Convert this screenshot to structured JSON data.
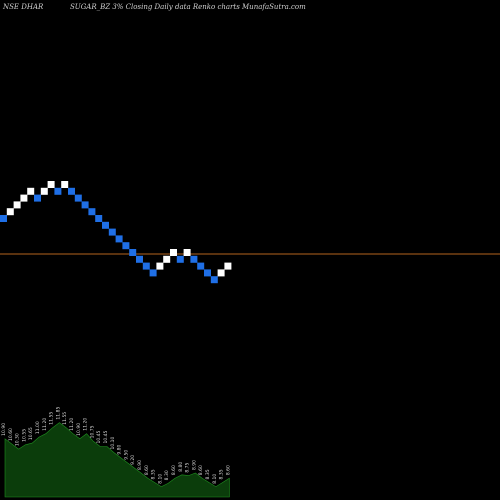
{
  "header": {
    "left": "NSE DHAR",
    "center": "SUGAR_BZ 3% Closing Daily data  Renko charts MunafaSutra.com"
  },
  "chart_data": {
    "type": "renko",
    "box_size_percent": 3,
    "colors": {
      "up": "#ffffff",
      "down": "#1f6fe6",
      "hline": "#b4641e",
      "volume_fill": "#0b3d0b",
      "volume_line": "#1f8f1f",
      "background": "#000000"
    },
    "bricks": [
      "D",
      "U",
      "U",
      "U",
      "U",
      "D",
      "U",
      "U",
      "D",
      "U",
      "D",
      "D",
      "D",
      "D",
      "D",
      "D",
      "D",
      "D",
      "D",
      "D",
      "D",
      "D",
      "D",
      "U",
      "U",
      "U",
      "D",
      "U",
      "D",
      "D",
      "D",
      "D",
      "U",
      "U"
    ],
    "volume_label_values": [
      "10.90",
      "10.60",
      "10.30",
      "10.55",
      "10.65",
      "11.00",
      "11.20",
      "11.55",
      "11.85",
      "11.55",
      "11.20",
      "10.90",
      "11.20",
      "10.75",
      "10.45",
      "10.45",
      "10.10",
      "9.80",
      "9.50",
      "9.20",
      "8.90",
      "8.60",
      "8.35",
      "8.10",
      "8.30",
      "8.60",
      "8.80",
      "8.75",
      "8.90",
      "8.60",
      "8.35",
      "8.10",
      "8.35",
      "8.60"
    ]
  }
}
